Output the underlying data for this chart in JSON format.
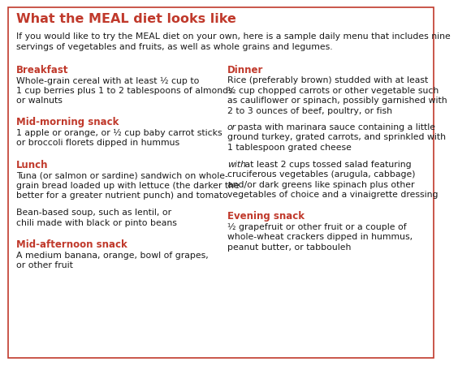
{
  "title": "What the MEAL diet looks like",
  "intro_line1": "If you would like to try the MEAL diet on your own, here is a sample daily menu that includes nine",
  "intro_line2": "servings of vegetables and fruits, as well as whole grains and legumes.",
  "left_column": [
    {
      "type": "heading",
      "text": "Breakfast"
    },
    {
      "type": "body",
      "text": "Whole-grain cereal with at least ½ cup to\n1 cup berries plus 1 to 2 tablespoons of almonds\nor walnuts"
    },
    {
      "type": "heading",
      "text": "Mid-morning snack"
    },
    {
      "type": "body",
      "text": "1 apple or orange, or ½ cup baby carrot sticks\nor broccoli florets dipped in hummus"
    },
    {
      "type": "heading",
      "text": "Lunch"
    },
    {
      "type": "body",
      "text": "Tuna (or salmon or sardine) sandwich on whole-\ngrain bread loaded up with lettuce (the darker the\nbetter for a greater nutrient punch) and tomato"
    },
    {
      "type": "body",
      "text": "Bean-based soup, such as lentil, or\nchili made with black or pinto beans"
    },
    {
      "type": "heading",
      "text": "Mid-afternoon snack"
    },
    {
      "type": "body",
      "text": "A medium banana, orange, bowl of grapes,\nor other fruit"
    }
  ],
  "right_column": [
    {
      "type": "heading",
      "text": "Dinner"
    },
    {
      "type": "body",
      "text": "Rice (preferably brown) studded with at least\n½ cup chopped carrots or other vegetable such\nas cauliflower or spinach, possibly garnished with\n2 to 3 ounces of beef, poultry, or fish"
    },
    {
      "type": "body_italic_start",
      "italic_text": "or",
      "rest_text": " pasta with marinara sauce containing a little\nground turkey, grated carrots, and sprinkled with\n1 tablespoon grated cheese"
    },
    {
      "type": "body_italic_start",
      "italic_text": "with",
      "rest_text": " at least 2 cups tossed salad featuring\ncruciferous vegetables (arugula, cabbage)\nand/or dark greens like spinach plus other\nvegetables of choice and a vinaigrette dressing"
    },
    {
      "type": "heading",
      "text": "Evening snack"
    },
    {
      "type": "body",
      "text": "½ grapefruit or other fruit or a couple of\nwhole-wheat crackers dipped in hummus,\npeanut butter, or tabbouleh"
    }
  ],
  "heading_color": "#c0392b",
  "body_color": "#1a1a1a",
  "title_color": "#c0392b",
  "intro_color": "#1a1a1a",
  "border_color": "#c0392b",
  "bg_color": "#ffffff",
  "heading_fontsize": 8.5,
  "body_fontsize": 7.8,
  "title_fontsize": 11.5
}
